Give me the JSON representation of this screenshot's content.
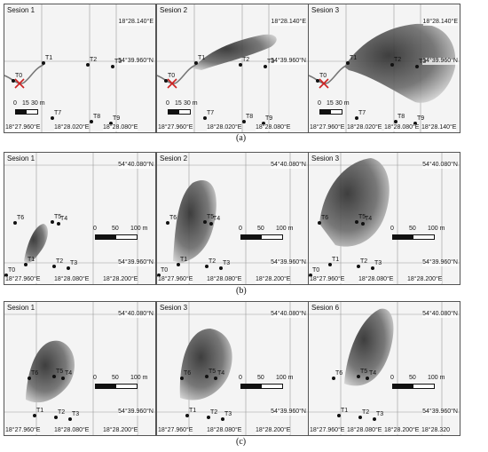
{
  "rows": [
    {
      "caption": "(a)",
      "panels": [
        {
          "session": "Sesion 1",
          "lon_top": "18°28.140°E",
          "lat": "54°39.960°N",
          "scale": [
            "0",
            "15",
            "30 m"
          ],
          "bottom": [
            "18°27.960°E",
            "18°28.020°E",
            "18°28.080°E"
          ],
          "points": [
            "T0",
            "T1",
            "T2",
            "T3",
            "T7",
            "T8",
            "T9"
          ]
        },
        {
          "session": "Sesion 2",
          "lon_top": "18°28.140°E",
          "lat": "54°39.960°N",
          "scale": [
            "0",
            "15",
            "30 m"
          ],
          "bottom": [
            "18°27.960°E",
            "18°28.020°E",
            "18°28.080°E"
          ],
          "points": [
            "T0",
            "T1",
            "T2",
            "T3",
            "T7",
            "T8",
            "T9"
          ]
        },
        {
          "session": "Sesion 3",
          "lon_top": "18°28.140°E",
          "lat": "54°39.960°N",
          "scale": [
            "0",
            "15",
            "30 m"
          ],
          "bottom": [
            "18°27.960°E",
            "18°28.020°E",
            "18°28.080°E",
            "18°28.140°E"
          ],
          "points": [
            "T0",
            "T1",
            "T2",
            "T3",
            "T7",
            "T8",
            "T9"
          ]
        }
      ]
    },
    {
      "caption": "(b)",
      "panels": [
        {
          "session": "Sesion 1",
          "lat_top": "54°40.080°N",
          "lat": "54°39.960°N",
          "scale": [
            "0",
            "50",
            "100 m"
          ],
          "bottom": [
            "18°27.960°E",
            "18°28.080°E",
            "18°28.200°E"
          ],
          "points": [
            "T6",
            "T5",
            "T4",
            "T0",
            "T1",
            "T2",
            "T3"
          ]
        },
        {
          "session": "Sesion 2",
          "lat_top": "54°40.080°N",
          "lat": "54°39.960°N",
          "scale": [
            "0",
            "50",
            "100 m"
          ],
          "bottom": [
            "18°27.960°E",
            "18°28.080°E",
            "18°28.200°E"
          ],
          "points": [
            "T6",
            "T5",
            "T4",
            "T0",
            "T1",
            "T2",
            "T3"
          ]
        },
        {
          "session": "Sesion 3",
          "lat_top": "54°40.080°N",
          "lat": "54°39.960°N",
          "scale": [
            "0",
            "50",
            "100 m"
          ],
          "bottom": [
            "18°27.960°E",
            "18°28.080°E",
            "18°28.200°E"
          ],
          "points": [
            "T6",
            "T5",
            "T4",
            "T0",
            "T1",
            "T2",
            "T3"
          ]
        }
      ]
    },
    {
      "caption": "(c)",
      "panels": [
        {
          "session": "Sesion 1",
          "lat_top": "54°40.080°N",
          "lat": "54°39.960°N",
          "scale": [
            "0",
            "50",
            "100 m"
          ],
          "bottom": [
            "18°27.960°E",
            "18°28.080°E",
            "18°28.200°E"
          ],
          "points": [
            "T6",
            "T5",
            "T4",
            "T1",
            "T2",
            "T3"
          ]
        },
        {
          "session": "Sesion 3",
          "lat_top": "54°40.080°N",
          "lat": "54°39.960°N",
          "scale": [
            "0",
            "50",
            "100 m"
          ],
          "bottom": [
            "18°27.960°E",
            "18°28.080°E",
            "18°28.200°E"
          ],
          "points": [
            "T6",
            "T5",
            "T4",
            "T1",
            "T2",
            "T3"
          ]
        },
        {
          "session": "Sesion 6",
          "lat_top": "54°40.080°N",
          "lat": "54°39.960°N",
          "scale": [
            "0",
            "50",
            "100 m"
          ],
          "bottom": [
            "18°27.960°E",
            "18°28.080°E",
            "18°28.200°E",
            "18°28.320"
          ],
          "points": [
            "T6",
            "T5",
            "T4",
            "T1",
            "T2",
            "T3"
          ]
        }
      ]
    }
  ]
}
